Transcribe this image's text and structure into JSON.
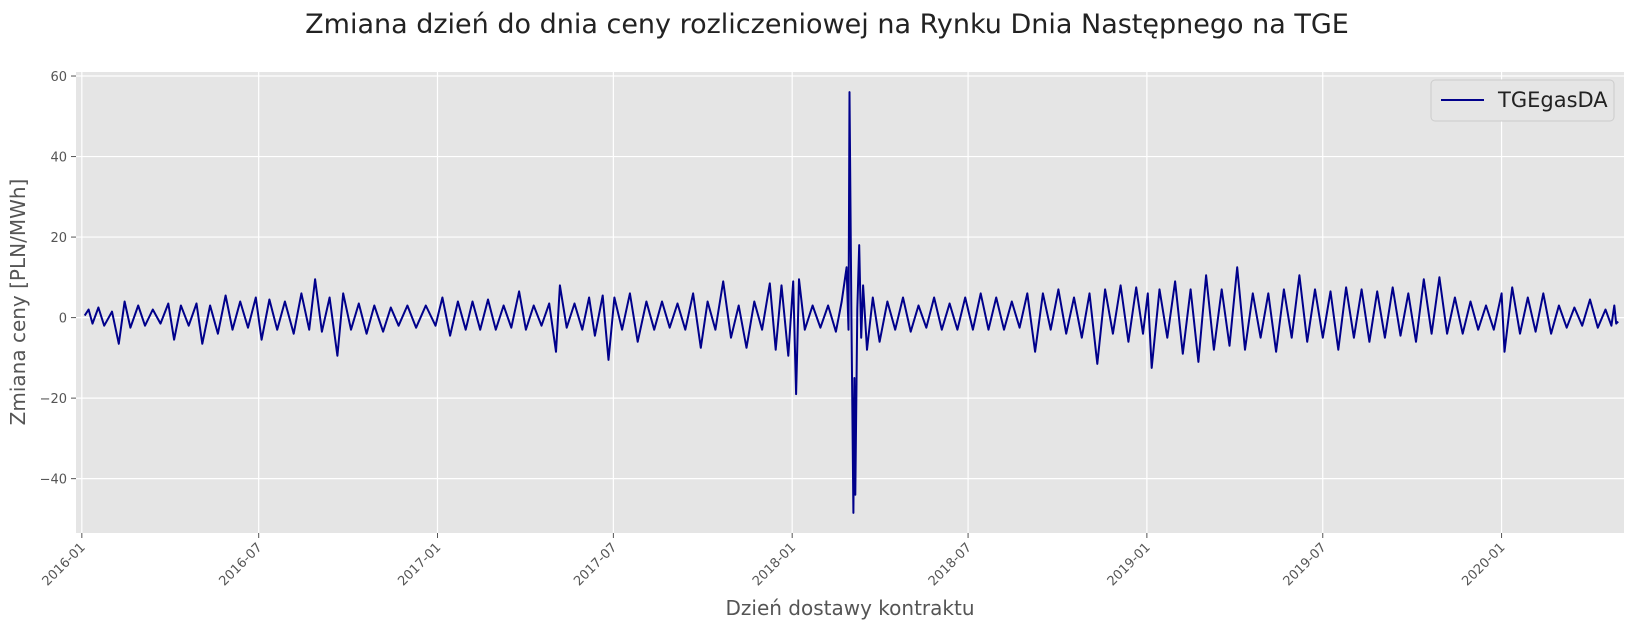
{
  "chart_data": {
    "type": "line",
    "title": "Zmiana dzień do dnia ceny rozliczeniowej na Rynku Dnia Następnego na TGE",
    "xlabel": "Dzień dostawy kontraktu",
    "ylabel": "Zmiana ceny [PLN/MWh]",
    "x_range": [
      "2015-12-26",
      "2020-05-06"
    ],
    "ylim": [
      -53.5,
      61
    ],
    "x_ticks": [
      "2016-01",
      "2016-07",
      "2017-01",
      "2017-07",
      "2018-01",
      "2018-07",
      "2019-01",
      "2019-07",
      "2020-01"
    ],
    "y_ticks": [
      -40,
      -20,
      0,
      20,
      40,
      60
    ],
    "y_tick_labels": [
      "−40",
      "−20",
      "0",
      "20",
      "40",
      "60"
    ],
    "grid": true,
    "legend_position": "top-right",
    "colors": {
      "background": "#e5e5e5",
      "grid": "#ffffff",
      "line": "#00008b",
      "text": "#555555",
      "title": "#222222"
    },
    "series": [
      {
        "name": "TGEgasDA",
        "color": "#00008b",
        "points": [
          [
            "2016-01-04",
            0.5
          ],
          [
            "2016-01-08",
            2
          ],
          [
            "2016-01-12",
            -1.5
          ],
          [
            "2016-01-18",
            2.5
          ],
          [
            "2016-01-24",
            -2
          ],
          [
            "2016-02-01",
            1.5
          ],
          [
            "2016-02-08",
            -6.5
          ],
          [
            "2016-02-14",
            4
          ],
          [
            "2016-02-20",
            -2.5
          ],
          [
            "2016-02-28",
            3
          ],
          [
            "2016-03-06",
            -2
          ],
          [
            "2016-03-14",
            2
          ],
          [
            "2016-03-22",
            -1.5
          ],
          [
            "2016-03-30",
            3.5
          ],
          [
            "2016-04-05",
            -5.5
          ],
          [
            "2016-04-12",
            3
          ],
          [
            "2016-04-20",
            -2
          ],
          [
            "2016-04-28",
            3.5
          ],
          [
            "2016-05-04",
            -6.5
          ],
          [
            "2016-05-12",
            3
          ],
          [
            "2016-05-20",
            -4
          ],
          [
            "2016-05-28",
            5.5
          ],
          [
            "2016-06-04",
            -3
          ],
          [
            "2016-06-12",
            4
          ],
          [
            "2016-06-20",
            -2.5
          ],
          [
            "2016-06-28",
            5
          ],
          [
            "2016-07-04",
            -5.5
          ],
          [
            "2016-07-12",
            4.5
          ],
          [
            "2016-07-20",
            -3
          ],
          [
            "2016-07-28",
            4
          ],
          [
            "2016-08-06",
            -4
          ],
          [
            "2016-08-14",
            6
          ],
          [
            "2016-08-22",
            -3
          ],
          [
            "2016-08-28",
            9.5
          ],
          [
            "2016-09-04",
            -3.5
          ],
          [
            "2016-09-12",
            5
          ],
          [
            "2016-09-20",
            -9.5
          ],
          [
            "2016-09-26",
            6
          ],
          [
            "2016-10-04",
            -3
          ],
          [
            "2016-10-12",
            3.5
          ],
          [
            "2016-10-20",
            -4
          ],
          [
            "2016-10-28",
            3
          ],
          [
            "2016-11-06",
            -3.5
          ],
          [
            "2016-11-14",
            2.5
          ],
          [
            "2016-11-22",
            -2
          ],
          [
            "2016-12-01",
            3
          ],
          [
            "2016-12-10",
            -2.5
          ],
          [
            "2016-12-20",
            3
          ],
          [
            "2016-12-30",
            -2
          ],
          [
            "2017-01-06",
            5
          ],
          [
            "2017-01-14",
            -4.5
          ],
          [
            "2017-01-22",
            4
          ],
          [
            "2017-01-30",
            -3
          ],
          [
            "2017-02-06",
            4
          ],
          [
            "2017-02-14",
            -3
          ],
          [
            "2017-02-22",
            4.5
          ],
          [
            "2017-03-02",
            -3
          ],
          [
            "2017-03-10",
            3
          ],
          [
            "2017-03-18",
            -2.5
          ],
          [
            "2017-03-26",
            6.5
          ],
          [
            "2017-04-02",
            -3
          ],
          [
            "2017-04-10",
            3
          ],
          [
            "2017-04-18",
            -2
          ],
          [
            "2017-04-26",
            3.5
          ],
          [
            "2017-05-03",
            -8.5
          ],
          [
            "2017-05-07",
            8
          ],
          [
            "2017-05-14",
            -2.5
          ],
          [
            "2017-05-22",
            3.5
          ],
          [
            "2017-05-30",
            -3
          ],
          [
            "2017-06-06",
            5
          ],
          [
            "2017-06-12",
            -4.5
          ],
          [
            "2017-06-20",
            5.5
          ],
          [
            "2017-06-26",
            -10.5
          ],
          [
            "2017-07-02",
            5
          ],
          [
            "2017-07-10",
            -3
          ],
          [
            "2017-07-18",
            6
          ],
          [
            "2017-07-26",
            -6
          ],
          [
            "2017-08-04",
            4
          ],
          [
            "2017-08-12",
            -3
          ],
          [
            "2017-08-20",
            4
          ],
          [
            "2017-08-28",
            -2.5
          ],
          [
            "2017-09-05",
            3.5
          ],
          [
            "2017-09-13",
            -3
          ],
          [
            "2017-09-21",
            6
          ],
          [
            "2017-09-29",
            -7.5
          ],
          [
            "2017-10-06",
            4
          ],
          [
            "2017-10-14",
            -3
          ],
          [
            "2017-10-22",
            9
          ],
          [
            "2017-10-30",
            -5
          ],
          [
            "2017-11-07",
            3
          ],
          [
            "2017-11-15",
            -7.5
          ],
          [
            "2017-11-23",
            4
          ],
          [
            "2017-12-01",
            -3
          ],
          [
            "2017-12-09",
            8.5
          ],
          [
            "2017-12-15",
            -8
          ],
          [
            "2017-12-21",
            8
          ],
          [
            "2017-12-28",
            -9.5
          ],
          [
            "2018-01-02",
            9
          ],
          [
            "2018-01-05",
            -19
          ],
          [
            "2018-01-08",
            9.5
          ],
          [
            "2018-01-14",
            -3
          ],
          [
            "2018-01-22",
            3
          ],
          [
            "2018-01-30",
            -2.5
          ],
          [
            "2018-02-07",
            3
          ],
          [
            "2018-02-15",
            -3.5
          ],
          [
            "2018-02-21",
            4
          ],
          [
            "2018-02-26",
            12.5
          ],
          [
            "2018-02-28",
            -3
          ],
          [
            "2018-03-01",
            56
          ],
          [
            "2018-03-03",
            -2
          ],
          [
            "2018-03-05",
            -48.5
          ],
          [
            "2018-03-06",
            -15
          ],
          [
            "2018-03-07",
            -44
          ],
          [
            "2018-03-09",
            2
          ],
          [
            "2018-03-11",
            18
          ],
          [
            "2018-03-13",
            -5
          ],
          [
            "2018-03-15",
            8
          ],
          [
            "2018-03-19",
            -8
          ],
          [
            "2018-03-25",
            5
          ],
          [
            "2018-04-01",
            -6
          ],
          [
            "2018-04-09",
            4
          ],
          [
            "2018-04-17",
            -3
          ],
          [
            "2018-04-25",
            5
          ],
          [
            "2018-05-03",
            -3.5
          ],
          [
            "2018-05-11",
            3
          ],
          [
            "2018-05-19",
            -2.5
          ],
          [
            "2018-05-27",
            5
          ],
          [
            "2018-06-04",
            -3
          ],
          [
            "2018-06-12",
            3.5
          ],
          [
            "2018-06-20",
            -3
          ],
          [
            "2018-06-28",
            5
          ],
          [
            "2018-07-06",
            -3
          ],
          [
            "2018-07-14",
            6
          ],
          [
            "2018-07-22",
            -3
          ],
          [
            "2018-07-30",
            5
          ],
          [
            "2018-08-07",
            -3
          ],
          [
            "2018-08-15",
            4
          ],
          [
            "2018-08-23",
            -2.5
          ],
          [
            "2018-08-31",
            6
          ],
          [
            "2018-09-08",
            -8.5
          ],
          [
            "2018-09-16",
            6
          ],
          [
            "2018-09-24",
            -3
          ],
          [
            "2018-10-02",
            7
          ],
          [
            "2018-10-10",
            -4
          ],
          [
            "2018-10-18",
            5
          ],
          [
            "2018-10-26",
            -5
          ],
          [
            "2018-11-03",
            6
          ],
          [
            "2018-11-11",
            -11.5
          ],
          [
            "2018-11-19",
            7
          ],
          [
            "2018-11-27",
            -4
          ],
          [
            "2018-12-05",
            8
          ],
          [
            "2018-12-13",
            -6
          ],
          [
            "2018-12-21",
            7.5
          ],
          [
            "2018-12-28",
            -4
          ],
          [
            "2019-01-02",
            6
          ],
          [
            "2019-01-06",
            -12.5
          ],
          [
            "2019-01-14",
            7
          ],
          [
            "2019-01-22",
            -5
          ],
          [
            "2019-01-30",
            9
          ],
          [
            "2019-02-07",
            -9
          ],
          [
            "2019-02-15",
            7
          ],
          [
            "2019-02-23",
            -11
          ],
          [
            "2019-03-03",
            10.5
          ],
          [
            "2019-03-11",
            -8
          ],
          [
            "2019-03-19",
            7
          ],
          [
            "2019-03-27",
            -7
          ],
          [
            "2019-04-04",
            12.5
          ],
          [
            "2019-04-12",
            -8
          ],
          [
            "2019-04-20",
            6
          ],
          [
            "2019-04-28",
            -5
          ],
          [
            "2019-05-06",
            6
          ],
          [
            "2019-05-14",
            -8.5
          ],
          [
            "2019-05-22",
            7
          ],
          [
            "2019-05-30",
            -5
          ],
          [
            "2019-06-07",
            10.5
          ],
          [
            "2019-06-15",
            -6
          ],
          [
            "2019-06-23",
            7
          ],
          [
            "2019-07-01",
            -5
          ],
          [
            "2019-07-09",
            6.5
          ],
          [
            "2019-07-17",
            -8
          ],
          [
            "2019-07-25",
            7.5
          ],
          [
            "2019-08-02",
            -5
          ],
          [
            "2019-08-10",
            7
          ],
          [
            "2019-08-18",
            -6
          ],
          [
            "2019-08-26",
            6.5
          ],
          [
            "2019-09-03",
            -5
          ],
          [
            "2019-09-11",
            7.5
          ],
          [
            "2019-09-19",
            -4.5
          ],
          [
            "2019-09-27",
            6
          ],
          [
            "2019-10-05",
            -6
          ],
          [
            "2019-10-13",
            9.5
          ],
          [
            "2019-10-21",
            -4
          ],
          [
            "2019-10-29",
            10
          ],
          [
            "2019-11-06",
            -4
          ],
          [
            "2019-11-14",
            5
          ],
          [
            "2019-11-22",
            -4
          ],
          [
            "2019-11-30",
            4
          ],
          [
            "2019-12-08",
            -3
          ],
          [
            "2019-12-16",
            3
          ],
          [
            "2019-12-24",
            -3
          ],
          [
            "2020-01-01",
            6
          ],
          [
            "2020-01-04",
            -8.5
          ],
          [
            "2020-01-12",
            7.5
          ],
          [
            "2020-01-20",
            -4
          ],
          [
            "2020-01-28",
            5
          ],
          [
            "2020-02-05",
            -3.5
          ],
          [
            "2020-02-13",
            6
          ],
          [
            "2020-02-21",
            -4
          ],
          [
            "2020-02-29",
            3
          ],
          [
            "2020-03-08",
            -2.5
          ],
          [
            "2020-03-16",
            2.5
          ],
          [
            "2020-03-24",
            -2
          ],
          [
            "2020-04-01",
            4.5
          ],
          [
            "2020-04-09",
            -2.5
          ],
          [
            "2020-04-17",
            2
          ],
          [
            "2020-04-23",
            -2
          ],
          [
            "2020-04-26",
            3
          ],
          [
            "2020-04-28",
            -1.5
          ],
          [
            "2020-04-30",
            -1
          ]
        ]
      }
    ]
  }
}
